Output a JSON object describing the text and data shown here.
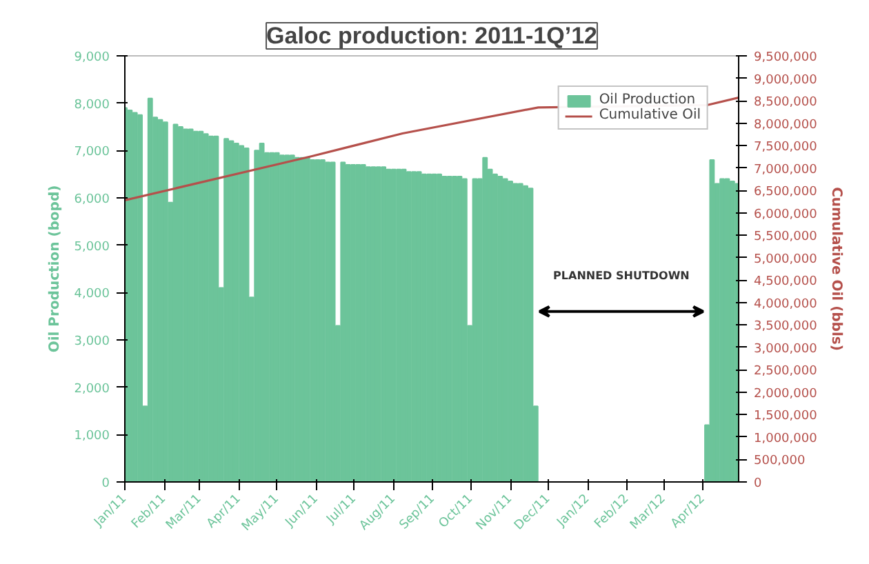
{
  "chart_data": {
    "type": "bar",
    "title": "Galoc production: 2011-1Q’12",
    "ylabel": "Oil Production (bopd)",
    "y2label": "Cumulative Oil (bbls)",
    "xlim": [
      "2011-01-01",
      "2012-04-29"
    ],
    "xticks": [
      {
        "value": "2011-01-01",
        "label": "Jan/11"
      },
      {
        "value": "2011-02-01",
        "label": "Feb/11"
      },
      {
        "value": "2011-03-01",
        "label": "Mar/11"
      },
      {
        "value": "2011-04-01",
        "label": "Apr/11"
      },
      {
        "value": "2011-05-01",
        "label": "May/11"
      },
      {
        "value": "2011-06-01",
        "label": "Jun/11"
      },
      {
        "value": "2011-07-01",
        "label": "Jul/11"
      },
      {
        "value": "2011-08-01",
        "label": "Aug/11"
      },
      {
        "value": "2011-09-01",
        "label": "Sep/11"
      },
      {
        "value": "2011-10-01",
        "label": "Oct/11"
      },
      {
        "value": "2011-11-01",
        "label": "Nov/11"
      },
      {
        "value": "2011-12-01",
        "label": "Dec/11"
      },
      {
        "value": "2012-01-01",
        "label": "Jan/12"
      },
      {
        "value": "2012-02-01",
        "label": "Feb/12"
      },
      {
        "value": "2012-03-01",
        "label": "Mar/12"
      },
      {
        "value": "2012-04-01",
        "label": "Apr/12"
      }
    ],
    "ylim": [
      0,
      9000
    ],
    "yticks": [
      0,
      {
        "value": 1000,
        "label": "1,000"
      },
      {
        "value": 2000,
        "label": "2,000"
      },
      {
        "value": 3000,
        "label": "3,000"
      },
      {
        "value": 4000,
        "label": "4,000"
      },
      {
        "value": 5000,
        "label": "5,000"
      },
      {
        "value": 6000,
        "label": "6,000"
      },
      {
        "value": 7000,
        "label": "7,000"
      },
      {
        "value": 8000,
        "label": "8,000"
      },
      {
        "value": 9000,
        "label": "9,000"
      }
    ],
    "y2lim": [
      0,
      9500000
    ],
    "y2ticks": [
      0,
      {
        "value": 500000,
        "label": "500,000"
      },
      {
        "value": 1000000,
        "label": "1,000,000"
      },
      {
        "value": 1500000,
        "label": "1,500,000"
      },
      {
        "value": 2000000,
        "label": "2,000,000"
      },
      {
        "value": 2500000,
        "label": "2,500,000"
      },
      {
        "value": 3000000,
        "label": "3,000,000"
      },
      {
        "value": 3500000,
        "label": "3,500,000"
      },
      {
        "value": 4000000,
        "label": "4,000,000"
      },
      {
        "value": 4500000,
        "label": "4,500,000"
      },
      {
        "value": 5000000,
        "label": "5,000,000"
      },
      {
        "value": 5500000,
        "label": "5,500,000"
      },
      {
        "value": 6000000,
        "label": "6,000,000"
      },
      {
        "value": 6500000,
        "label": "6,500,000"
      },
      {
        "value": 7000000,
        "label": "7,000,000"
      },
      {
        "value": 7500000,
        "label": "7,500,000"
      },
      {
        "value": 8000000,
        "label": "8,000,000"
      },
      {
        "value": 8500000,
        "label": "8,500,000"
      },
      {
        "value": 9000000,
        "label": "9,000,000"
      },
      {
        "value": 9500000,
        "label": "9,500,000"
      }
    ],
    "grid": false,
    "legend": "top right",
    "annotations": [
      "PLANNED SHUTDOWN"
    ],
    "series": [
      {
        "name": "Oil Production",
        "color": "#6cc49a",
        "x": [
          "2011-01-01",
          "2011-01-05",
          "2011-01-09",
          "2011-01-13",
          "2011-01-17",
          "2011-01-21",
          "2011-01-25",
          "2011-01-29",
          "2011-02-02",
          "2011-02-06",
          "2011-02-10",
          "2011-02-14",
          "2011-02-18",
          "2011-02-22",
          "2011-02-26",
          "2011-03-02",
          "2011-03-06",
          "2011-03-10",
          "2011-03-14",
          "2011-03-18",
          "2011-03-22",
          "2011-03-26",
          "2011-03-30",
          "2011-04-03",
          "2011-04-07",
          "2011-04-11",
          "2011-04-15",
          "2011-04-19",
          "2011-04-23",
          "2011-04-27",
          "2011-05-01",
          "2011-05-05",
          "2011-05-09",
          "2011-05-13",
          "2011-05-17",
          "2011-05-21",
          "2011-05-25",
          "2011-05-29",
          "2011-06-02",
          "2011-06-06",
          "2011-06-10",
          "2011-06-14",
          "2011-06-18",
          "2011-06-22",
          "2011-06-26",
          "2011-06-30",
          "2011-07-04",
          "2011-07-08",
          "2011-07-12",
          "2011-07-16",
          "2011-07-20",
          "2011-07-24",
          "2011-07-28",
          "2011-08-01",
          "2011-08-05",
          "2011-08-09",
          "2011-08-13",
          "2011-08-17",
          "2011-08-21",
          "2011-08-25",
          "2011-08-29",
          "2011-09-02",
          "2011-09-06",
          "2011-09-10",
          "2011-09-14",
          "2011-09-18",
          "2011-09-22",
          "2011-09-26",
          "2011-09-30",
          "2011-10-04",
          "2011-10-08",
          "2011-10-12",
          "2011-10-16",
          "2011-10-20",
          "2011-10-24",
          "2011-10-28",
          "2011-11-01",
          "2011-11-05",
          "2011-11-09",
          "2011-11-13",
          "2011-11-17",
          "2011-11-21",
          "2012-04-04",
          "2012-04-08",
          "2012-04-12",
          "2012-04-16",
          "2012-04-20",
          "2012-04-24",
          "2012-04-28"
        ],
        "values": [
          7900,
          7850,
          7800,
          7750,
          1600,
          8100,
          7700,
          7650,
          7600,
          5900,
          7550,
          7500,
          7450,
          7450,
          7400,
          7400,
          7350,
          7300,
          7300,
          4100,
          7250,
          7200,
          7150,
          7100,
          7050,
          3900,
          7000,
          7150,
          6950,
          6950,
          6950,
          6900,
          6900,
          6900,
          6850,
          6850,
          6850,
          6800,
          6800,
          6800,
          6750,
          6750,
          3300,
          6750,
          6700,
          6700,
          6700,
          6700,
          6650,
          6650,
          6650,
          6650,
          6600,
          6600,
          6600,
          6600,
          6550,
          6550,
          6550,
          6500,
          6500,
          6500,
          6500,
          6450,
          6450,
          6450,
          6450,
          6400,
          3300,
          6400,
          6400,
          6850,
          6600,
          6500,
          6450,
          6400,
          6350,
          6300,
          6300,
          6250,
          6200,
          1600,
          1200,
          6800,
          6300,
          6400,
          6400,
          6350,
          6300
        ]
      },
      {
        "name": "Cumulative Oil",
        "type": "line",
        "axis": "y2",
        "color": "#b5504b",
        "x": [
          "2011-01-01",
          "2011-05-28",
          "2011-08-08",
          "2011-11-23",
          "2012-04-04",
          "2012-04-29"
        ],
        "values": [
          6280000,
          7260000,
          7770000,
          8350000,
          8400000,
          8570000
        ]
      }
    ]
  }
}
